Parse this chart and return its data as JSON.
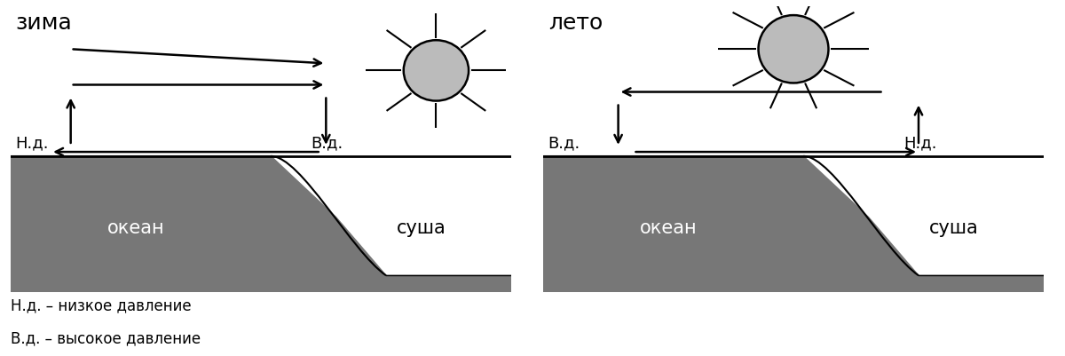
{
  "title_winter": "зима",
  "title_summer": "лето",
  "label_ocean": "океан",
  "label_land": "суша",
  "label_nd_w": "Н.д.",
  "label_vd_w": "В.д.",
  "label_vd_s": "В.д.",
  "label_nd_s": "Н.д.",
  "legend_nd": "Н.д. – низкое давление",
  "legend_vd": "В.д. – высокое давление",
  "ocean_color": "#777777",
  "sun_fill": "#bbbbbb",
  "bg_color": "#ffffff",
  "lw_arrow": 1.8,
  "lw_ground": 2.0,
  "fontsize_title": 18,
  "fontsize_label": 13,
  "fontsize_legend": 12,
  "fontsize_ocean_land": 15
}
